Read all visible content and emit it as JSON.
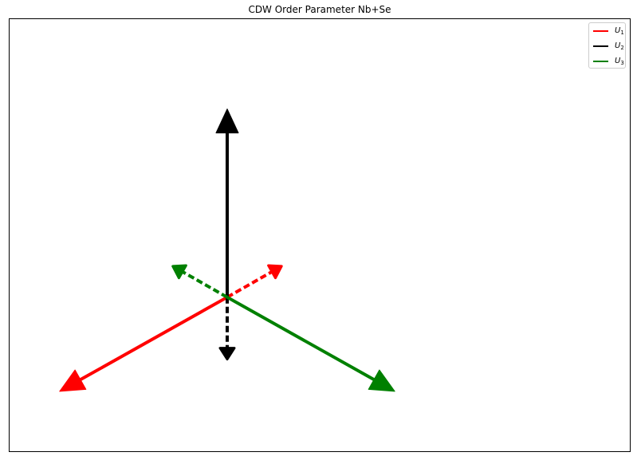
{
  "chart_data": {
    "type": "vector",
    "title": "CDW Order Parameter Nb+Se",
    "xlabel": "",
    "ylabel": "",
    "grid": false,
    "ticks": false,
    "legend_placement": "top-right",
    "xlim": [
      -1.0,
      1.85
    ],
    "ylim": [
      -0.72,
      1.3
    ],
    "origin": [
      0,
      0
    ],
    "series": [
      {
        "name": "U",
        "subscript": "1",
        "color": "#ff0000",
        "vectors": [
          {
            "style": "solid",
            "dx": -0.77,
            "dy": -0.44
          },
          {
            "style": "dashed",
            "dx": 0.25,
            "dy": 0.145
          }
        ]
      },
      {
        "name": "U",
        "subscript": "2",
        "color": "#000000",
        "vectors": [
          {
            "style": "solid",
            "dx": 0.0,
            "dy": 0.88
          },
          {
            "style": "dashed",
            "dx": 0.0,
            "dy": -0.29
          }
        ]
      },
      {
        "name": "U",
        "subscript": "3",
        "color": "#008000",
        "vectors": [
          {
            "style": "solid",
            "dx": 0.77,
            "dy": -0.44
          },
          {
            "style": "dashed",
            "dx": -0.25,
            "dy": 0.145
          }
        ]
      }
    ]
  }
}
